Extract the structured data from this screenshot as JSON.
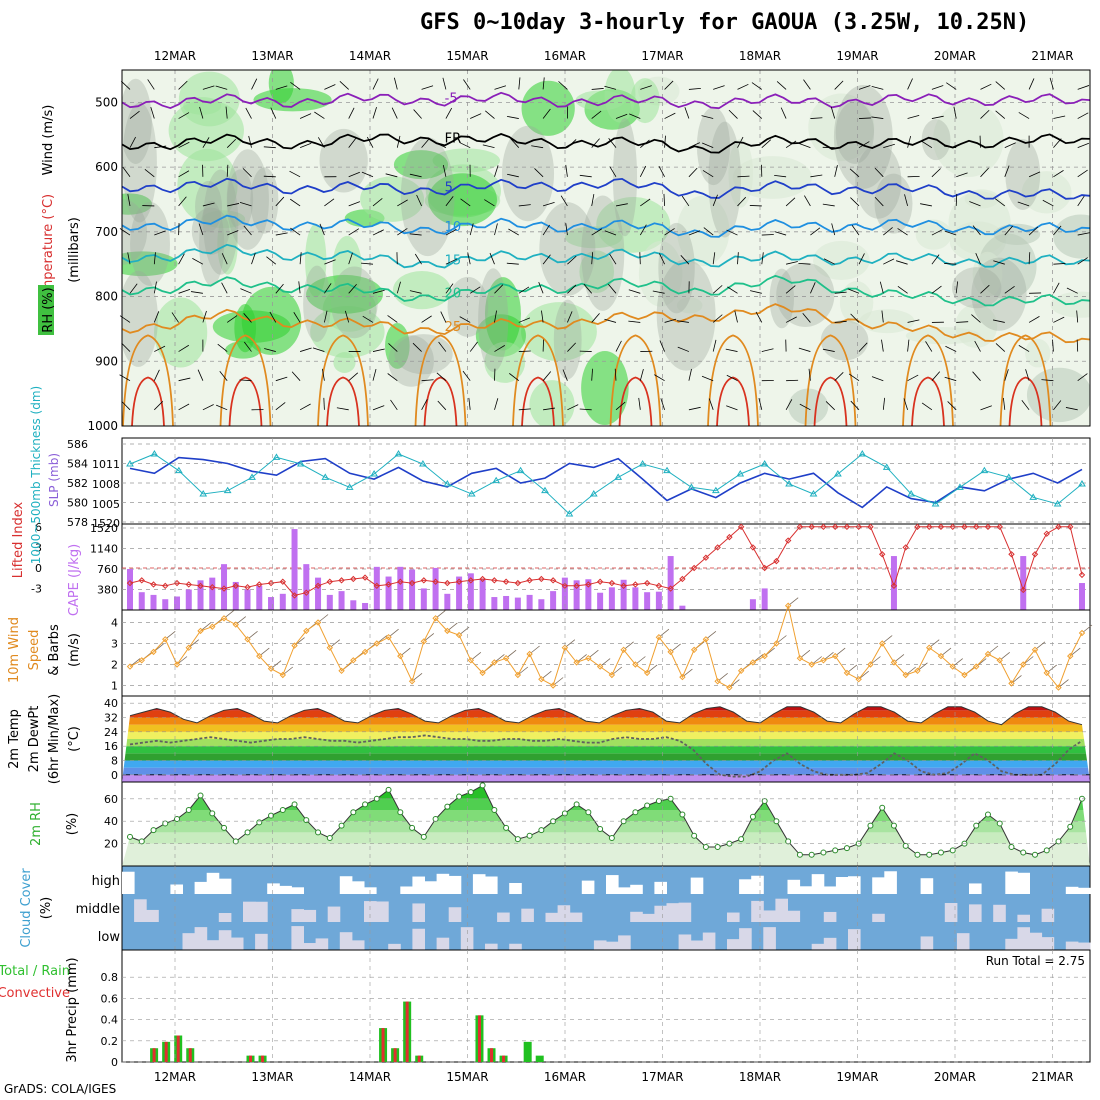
{
  "title": "GFS 0~10day 3-hourly for GAOUA (3.25W, 10.25N)",
  "credit": "GrADS: COLA/IGES",
  "dates": [
    "12MAR",
    "13MAR",
    "14MAR",
    "15MAR",
    "16MAR",
    "17MAR",
    "18MAR",
    "19MAR",
    "20MAR",
    "21MAR"
  ],
  "chart_data": [
    {
      "type": "heatmap",
      "panel": "upper-air cross section",
      "ylabel_parts": [
        "Wind (m/s)",
        "Temperature (°C)",
        "RH (%)"
      ],
      "ylabel_units": "(millibars)",
      "yticks": [
        500,
        600,
        700,
        800,
        900,
        1000
      ],
      "ylim": [
        1000,
        450
      ],
      "isotherms": [
        {
          "label": "-5",
          "p": [
            500,
            498,
            497,
            495,
            496,
            498,
            500,
            498,
            497,
            495,
            500
          ]
        },
        {
          "label": "FR",
          "p": [
            565,
            560,
            562,
            555,
            560,
            562,
            570,
            560,
            565,
            560,
            560
          ]
        },
        {
          "label": "5",
          "p": [
            630,
            628,
            632,
            634,
            630,
            625,
            640,
            630,
            635,
            640,
            648
          ]
        },
        {
          "label": "10",
          "p": [
            690,
            685,
            688,
            695,
            690,
            690,
            700,
            690,
            690,
            695,
            698
          ]
        },
        {
          "label": "15",
          "p": [
            740,
            730,
            735,
            748,
            740,
            735,
            745,
            740,
            742,
            745,
            748
          ]
        },
        {
          "label": "20",
          "p": [
            790,
            780,
            785,
            800,
            790,
            780,
            790,
            775,
            800,
            805,
            810
          ]
        },
        {
          "label": "25",
          "p": [
            850,
            830,
            840,
            850,
            845,
            835,
            830,
            820,
            850,
            860,
            870
          ]
        }
      ],
      "rh_levels": [
        30,
        50,
        70,
        90
      ]
    },
    {
      "type": "line",
      "panel": "thickness and SLP",
      "ylabel_parts": [
        "1000~500mb Thickness (dm)",
        "SLP (mb)"
      ],
      "left_ticks": [
        578,
        580,
        582,
        584,
        586
      ],
      "right_ticks": [
        1005,
        1008,
        1011
      ],
      "slp_bottom_label": "1520",
      "series": [
        {
          "name": "1000~500mb Thickness (dm)",
          "axis": "left",
          "color": "#1f3fc8",
          "values": [
            583.5,
            583.0,
            584.6,
            584.4,
            584.0,
            583.2,
            582.8,
            584.2,
            584.5,
            583.0,
            582.4,
            583.6,
            582.2,
            581.6,
            583.0,
            583.5,
            582.0,
            582.5,
            584.0,
            583.6,
            584.5,
            582.4,
            580.2,
            581.4,
            580.5,
            582.0,
            583.0,
            582.4,
            583.0,
            581.0,
            579.5,
            581.6,
            580.4,
            580.0,
            581.6,
            581.2,
            582.4,
            583.0,
            582.0,
            583.4
          ]
        },
        {
          "name": "SLP (mb)",
          "axis": "right",
          "color": "#1fb0c0",
          "values": [
            1011,
            1012.5,
            1010,
            1006.5,
            1007,
            1009,
            1012,
            1011,
            1009,
            1007.5,
            1009.5,
            1012.5,
            1011,
            1008,
            1006.5,
            1008.5,
            1010,
            1007,
            1003.5,
            1006.5,
            1009,
            1011,
            1010,
            1007.5,
            1007,
            1009.5,
            1011,
            1008,
            1006.5,
            1009.5,
            1012.5,
            1010.5,
            1006.5,
            1005,
            1007.5,
            1010,
            1009,
            1006,
            1005,
            1008
          ]
        }
      ]
    },
    {
      "type": "bar",
      "panel": "lifted index and CAPE",
      "ylabel_parts": [
        "Lifted Index",
        "CAPE (J/kg)"
      ],
      "left_ticks": [
        "-3",
        "0",
        "3",
        "6"
      ],
      "right_ticks": [
        380,
        760,
        1140,
        1520
      ],
      "series": [
        {
          "name": "CAPE (J/kg)",
          "axis": "right",
          "color": "#c070f0",
          "values": [
            760,
            330,
            280,
            200,
            250,
            380,
            550,
            600,
            850,
            520,
            380,
            450,
            240,
            300,
            1500,
            850,
            600,
            280,
            350,
            180,
            130,
            800,
            620,
            800,
            750,
            400,
            780,
            300,
            620,
            680,
            580,
            240,
            260,
            230,
            280,
            200,
            350,
            600,
            550,
            570,
            320,
            420,
            560,
            420,
            330,
            340,
            1000,
            80,
            0,
            0,
            0,
            0,
            0,
            200,
            400,
            0,
            0,
            0,
            0,
            0,
            0,
            0,
            0,
            0,
            0,
            1000,
            0,
            0,
            0,
            0,
            0,
            0,
            0,
            0,
            0,
            0,
            1000,
            0,
            0,
            0,
            0,
            500
          ]
        },
        {
          "name": "Lifted Index",
          "axis": "left",
          "color": "#d83030",
          "values": [
            -2.2,
            -1.8,
            -2.4,
            -2.6,
            -2.2,
            -2.4,
            -2.6,
            -2.8,
            -3.0,
            -2.6,
            -2.8,
            -2.4,
            -2.2,
            -2.0,
            -4.0,
            -3.6,
            -2.6,
            -2.0,
            -1.8,
            -1.6,
            -1.4,
            -2.6,
            -2.4,
            -2.0,
            -2.2,
            -1.8,
            -2.0,
            -2.2,
            -2.0,
            -1.8,
            -1.6,
            -1.8,
            -2.0,
            -2.2,
            -1.8,
            -1.6,
            -1.8,
            -2.6,
            -2.6,
            -2.4,
            -2.0,
            -2.2,
            -2.6,
            -2.4,
            -2.2,
            -2.6,
            -3.0,
            -1.6,
            0,
            1.5,
            3.0,
            4.5,
            6.0,
            3.0,
            0,
            1.0,
            4.0,
            6.0,
            6.0,
            6.0,
            6.0,
            6.0,
            6.0,
            6.0,
            2.0,
            -2.6,
            3.0,
            6.0,
            6.0,
            6.0,
            6.0,
            6.0,
            6.0,
            6.0,
            6.0,
            2.0,
            -3.2,
            2.0,
            5.0,
            6.0,
            6.0,
            -1.0
          ]
        }
      ],
      "zero_line_color": "#d83030"
    },
    {
      "type": "line",
      "panel": "10m wind",
      "ylabel_parts": [
        "10m Wind",
        "Speed",
        "& Barbs",
        "(m/s)"
      ],
      "yticks": [
        1,
        2,
        3,
        4
      ],
      "ylim": [
        0.5,
        4.5
      ],
      "series": [
        {
          "name": "10m Wind Speed",
          "color": "#f0a030",
          "values": [
            1.9,
            2.2,
            2.6,
            3.2,
            2.0,
            2.8,
            3.6,
            3.8,
            4.2,
            3.9,
            3.2,
            2.4,
            1.8,
            1.5,
            2.9,
            3.6,
            4.0,
            2.8,
            1.7,
            2.2,
            2.6,
            3.0,
            3.3,
            2.4,
            1.2,
            3.1,
            4.2,
            3.6,
            3.4,
            2.2,
            1.6,
            2.1,
            2.3,
            1.5,
            2.5,
            1.3,
            1.0,
            2.8,
            2.1,
            2.3,
            1.9,
            1.5,
            2.7,
            2.0,
            1.6,
            3.3,
            2.6,
            1.4,
            2.7,
            3.2,
            1.2,
            0.9,
            1.7,
            2.1,
            2.4,
            3.0,
            4.8,
            2.3,
            2.0,
            2.2,
            2.4,
            1.6,
            1.3,
            2.0,
            3.0,
            2.1,
            1.5,
            1.7,
            2.8,
            2.4,
            1.9,
            1.5,
            1.9,
            2.5,
            2.2,
            1.1,
            2.0,
            2.7,
            1.6,
            0.9,
            2.4,
            3.5
          ]
        }
      ]
    },
    {
      "type": "area",
      "panel": "2m temperature",
      "ylabel_parts": [
        "2m Temp",
        "2m DewPt",
        "(6hr Min/Max)",
        "(°C)"
      ],
      "yticks": [
        0,
        8,
        16,
        24,
        32,
        40
      ],
      "ylim": [
        -4,
        44
      ],
      "series": [
        {
          "name": "2m Temp",
          "values": [
            33,
            35,
            37,
            35,
            31,
            29,
            33,
            36,
            37,
            34,
            30,
            29,
            33,
            36,
            37,
            34,
            30,
            29,
            33,
            36,
            37,
            34,
            30,
            29,
            33,
            36,
            37,
            34,
            30,
            29,
            33,
            36,
            37,
            34,
            30,
            29,
            33,
            36,
            37,
            35,
            30,
            29,
            34,
            37,
            38,
            35,
            30,
            29,
            34,
            38,
            38,
            35,
            30,
            29,
            34,
            38,
            38,
            35,
            30,
            29,
            34,
            38,
            38,
            35,
            30,
            28,
            34,
            38,
            38,
            35,
            30,
            28
          ]
        },
        {
          "name": "2m DewPt",
          "values": [
            17,
            18,
            19,
            18,
            19,
            20,
            21,
            20,
            19,
            18,
            19,
            20,
            20,
            21,
            20,
            19,
            19,
            18,
            19,
            20,
            21,
            21,
            22,
            21,
            20,
            20,
            19,
            19,
            20,
            20,
            19,
            19,
            20,
            19,
            18,
            18,
            20,
            21,
            20,
            20,
            21,
            19,
            14,
            6,
            0,
            -1,
            -1,
            2,
            8,
            12,
            6,
            2,
            0,
            0,
            0,
            1,
            6,
            12,
            8,
            2,
            0,
            1,
            6,
            12,
            8,
            2,
            0,
            0,
            0,
            6,
            14,
            19
          ]
        }
      ]
    },
    {
      "type": "area",
      "panel": "2m relative humidity",
      "ylabel_parts": [
        "2m RH",
        "(%)"
      ],
      "yticks": [
        20,
        40,
        60
      ],
      "ylim": [
        0,
        75
      ],
      "series": [
        {
          "name": "2m RH",
          "color": "#30b030",
          "values": [
            26,
            22,
            32,
            38,
            42,
            50,
            63,
            47,
            34,
            22,
            30,
            39,
            45,
            50,
            55,
            41,
            30,
            25,
            36,
            48,
            55,
            60,
            68,
            48,
            34,
            26,
            42,
            53,
            62,
            66,
            72,
            50,
            34,
            24,
            27,
            32,
            40,
            47,
            55,
            48,
            33,
            25,
            40,
            48,
            54,
            58,
            60,
            46,
            27,
            17,
            17,
            20,
            24,
            44,
            58,
            40,
            22,
            10,
            10,
            12,
            14,
            16,
            20,
            36,
            52,
            36,
            18,
            10,
            10,
            12,
            14,
            20,
            36,
            46,
            38,
            17,
            12,
            10,
            14,
            22,
            35,
            60
          ]
        }
      ]
    },
    {
      "type": "heatmap",
      "panel": "cloud cover",
      "ylabel_parts": [
        "Cloud Cover",
        "(%)"
      ],
      "rows": [
        "high",
        "middle",
        "low"
      ],
      "color_scale": [
        "#ffffff",
        "#d8d8e8",
        "#6fa8d8"
      ]
    },
    {
      "type": "bar",
      "panel": "3hr precipitation",
      "ylabel_parts": [
        "Total / Rain",
        "Convective",
        "3hr Precip (mm)"
      ],
      "annotation": "Run Total = 2.75",
      "yticks": [
        0,
        0.2,
        0.4,
        0.6,
        0.8
      ],
      "ylim": [
        0,
        1.0
      ],
      "series": [
        {
          "name": "Total / Rain",
          "color": "#20c020",
          "values": [
            0,
            0,
            0.13,
            0.19,
            0.25,
            0.13,
            0,
            0,
            0,
            0,
            0.06,
            0.06,
            0,
            0,
            0,
            0,
            0,
            0,
            0,
            0,
            0,
            0.32,
            0.13,
            0.57,
            0.06,
            0,
            0,
            0,
            0,
            0.44,
            0.13,
            0.06,
            0,
            0.19,
            0.06,
            0,
            0,
            0,
            0,
            0,
            0,
            0,
            0,
            0,
            0,
            0,
            0,
            0,
            0,
            0,
            0,
            0,
            0,
            0,
            0,
            0,
            0,
            0,
            0,
            0,
            0,
            0,
            0,
            0,
            0,
            0,
            0,
            0,
            0,
            0,
            0,
            0,
            0,
            0,
            0,
            0,
            0,
            0,
            0,
            0
          ]
        },
        {
          "name": "Convective",
          "color": "#e03030",
          "values": [
            0,
            0,
            0.13,
            0.19,
            0.25,
            0.13,
            0,
            0,
            0,
            0,
            0.06,
            0.06,
            0,
            0,
            0,
            0,
            0,
            0,
            0,
            0,
            0,
            0.32,
            0.13,
            0.57,
            0.06,
            0,
            0,
            0,
            0,
            0.44,
            0.13,
            0.06,
            0,
            0,
            0,
            0,
            0,
            0,
            0,
            0,
            0,
            0,
            0,
            0,
            0,
            0,
            0,
            0,
            0,
            0,
            0,
            0,
            0,
            0,
            0,
            0,
            0,
            0,
            0,
            0,
            0,
            0,
            0,
            0,
            0,
            0,
            0,
            0,
            0,
            0,
            0,
            0,
            0,
            0,
            0,
            0,
            0,
            0,
            0,
            0
          ]
        }
      ]
    }
  ]
}
